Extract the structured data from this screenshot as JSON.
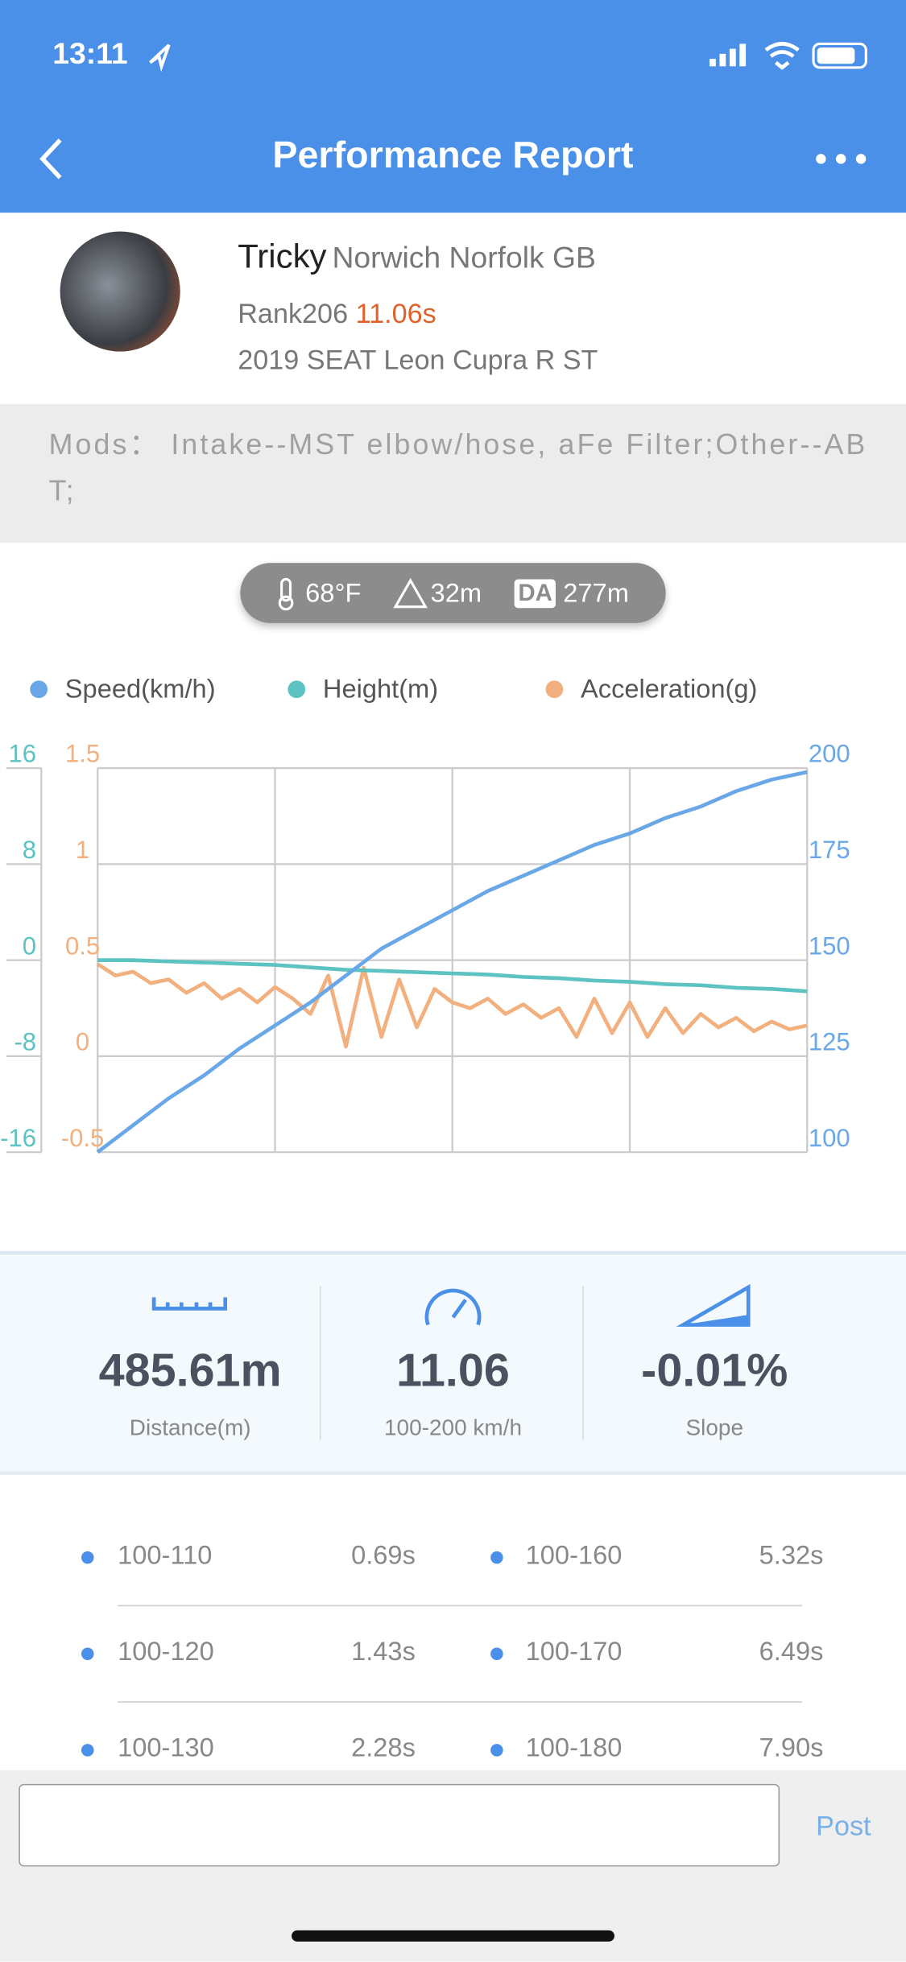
{
  "status_bar": {
    "time": "13:11"
  },
  "header": {
    "title": "Performance Report"
  },
  "profile": {
    "name": "Tricky",
    "location": "Norwich Norfolk GB",
    "rank": "Rank206",
    "time": "11.06s",
    "car": "2019 SEAT Leon Cupra R ST"
  },
  "mods": "Mods：  Intake--MST elbow/hose, aFe Filter;Other--ABT;",
  "conditions": {
    "temperature": "68°F",
    "altitude": "32m",
    "da_label": "DA",
    "da": "277m"
  },
  "chart_data": {
    "type": "line",
    "series": [
      {
        "name": "Speed(km/h)",
        "color": "#6aa7e6",
        "axis": "y2",
        "values": [
          100,
          107,
          114,
          120,
          127,
          133,
          139,
          146,
          153,
          158,
          163,
          168,
          172,
          176,
          180,
          183,
          187,
          190,
          194,
          197,
          199
        ]
      },
      {
        "name": "Height(m)",
        "color": "#5cc2c2",
        "axis": "y",
        "values": [
          0,
          0,
          -0.1,
          -0.2,
          -0.3,
          -0.4,
          -0.6,
          -0.8,
          -0.9,
          -1.0,
          -1.1,
          -1.2,
          -1.4,
          -1.5,
          -1.7,
          -1.8,
          -2.0,
          -2.1,
          -2.3,
          -2.4,
          -2.6
        ]
      },
      {
        "name": "Acceleration(g)",
        "color": "#f2b07e",
        "axis": "y3",
        "values": [
          0.48,
          0.42,
          0.44,
          0.38,
          0.4,
          0.33,
          0.38,
          0.3,
          0.35,
          0.28,
          0.36,
          0.3,
          0.22,
          0.42,
          0.05,
          0.46,
          0.1,
          0.4,
          0.15,
          0.35,
          0.28,
          0.25,
          0.3,
          0.22,
          0.27,
          0.2,
          0.25,
          0.1,
          0.3,
          0.12,
          0.28,
          0.1,
          0.25,
          0.12,
          0.22,
          0.15,
          0.2,
          0.13,
          0.18,
          0.14,
          0.16
        ]
      }
    ],
    "ylim": [
      -16,
      16
    ],
    "yticks": [
      -16,
      -8,
      0,
      8,
      16
    ],
    "y3lim": [
      -0.5,
      1.5
    ],
    "y3ticks": [
      -0.5,
      0,
      0.5,
      1,
      1.5
    ],
    "y2lim": [
      100,
      200
    ],
    "y2ticks": [
      100,
      125,
      150,
      175,
      200
    ],
    "grid": true
  },
  "stats": [
    {
      "value": "485.61m",
      "label": "Distance(m)"
    },
    {
      "value": "11.06",
      "label": "100-200 km/h"
    },
    {
      "value": "-0.01%",
      "label": "Slope"
    }
  ],
  "splits": [
    [
      {
        "label": "100-110",
        "time": "0.69s"
      },
      {
        "label": "100-160",
        "time": "5.32s"
      }
    ],
    [
      {
        "label": "100-120",
        "time": "1.43s"
      },
      {
        "label": "100-170",
        "time": "6.49s"
      }
    ],
    [
      {
        "label": "100-130",
        "time": "2.28s"
      },
      {
        "label": "100-180",
        "time": "7.90s"
      }
    ]
  ],
  "comment": {
    "button": "Post"
  }
}
